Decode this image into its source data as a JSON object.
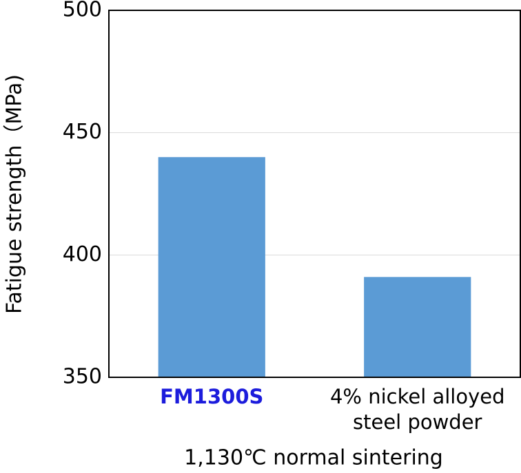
{
  "chart_data": {
    "type": "bar",
    "y_label": "Fatigue strength（MPa)",
    "x_label": "1,130℃ normal sintering",
    "categories": [
      "FM1300S",
      "4% nickel alloyed steel powder"
    ],
    "category_label_colors": [
      "#1c1cdc",
      "#000000"
    ],
    "values": [
      440,
      391
    ],
    "color": "#5b9bd5",
    "ylim": [
      350,
      500
    ],
    "yticks": [
      350,
      400,
      450,
      500
    ],
    "grid": true
  }
}
